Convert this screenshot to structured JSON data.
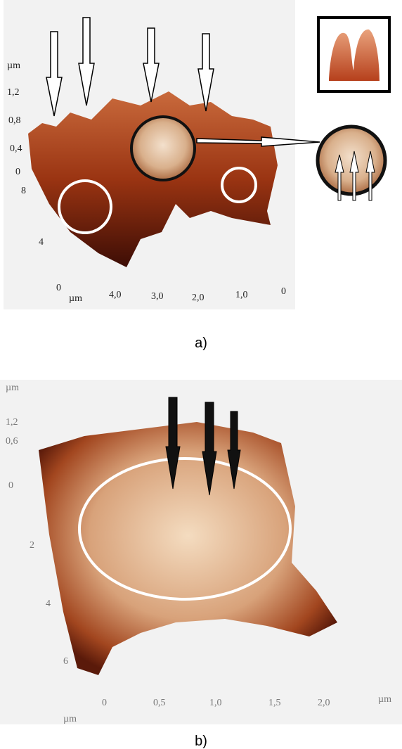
{
  "panel_a": {
    "z_unit": "µm",
    "z_ticks": [
      "1,2",
      "0,8",
      "0,4",
      "0"
    ],
    "y_ticks": [
      "8",
      "4",
      "0"
    ],
    "x_unit": "µm",
    "x_ticks": [
      "4,0",
      "3,0",
      "2,0",
      "1,0",
      "0"
    ],
    "caption": "a)"
  },
  "panel_b": {
    "z_unit": "µm",
    "z_ticks": [
      "1,2",
      "0,6",
      "0"
    ],
    "y_ticks": [
      "2",
      "4",
      "6"
    ],
    "x_ticks": [
      "0",
      "0,5",
      "1,0",
      "1,5",
      "2,0"
    ],
    "x_unit": "µm",
    "y_unit": "µm",
    "caption": "b)"
  }
}
